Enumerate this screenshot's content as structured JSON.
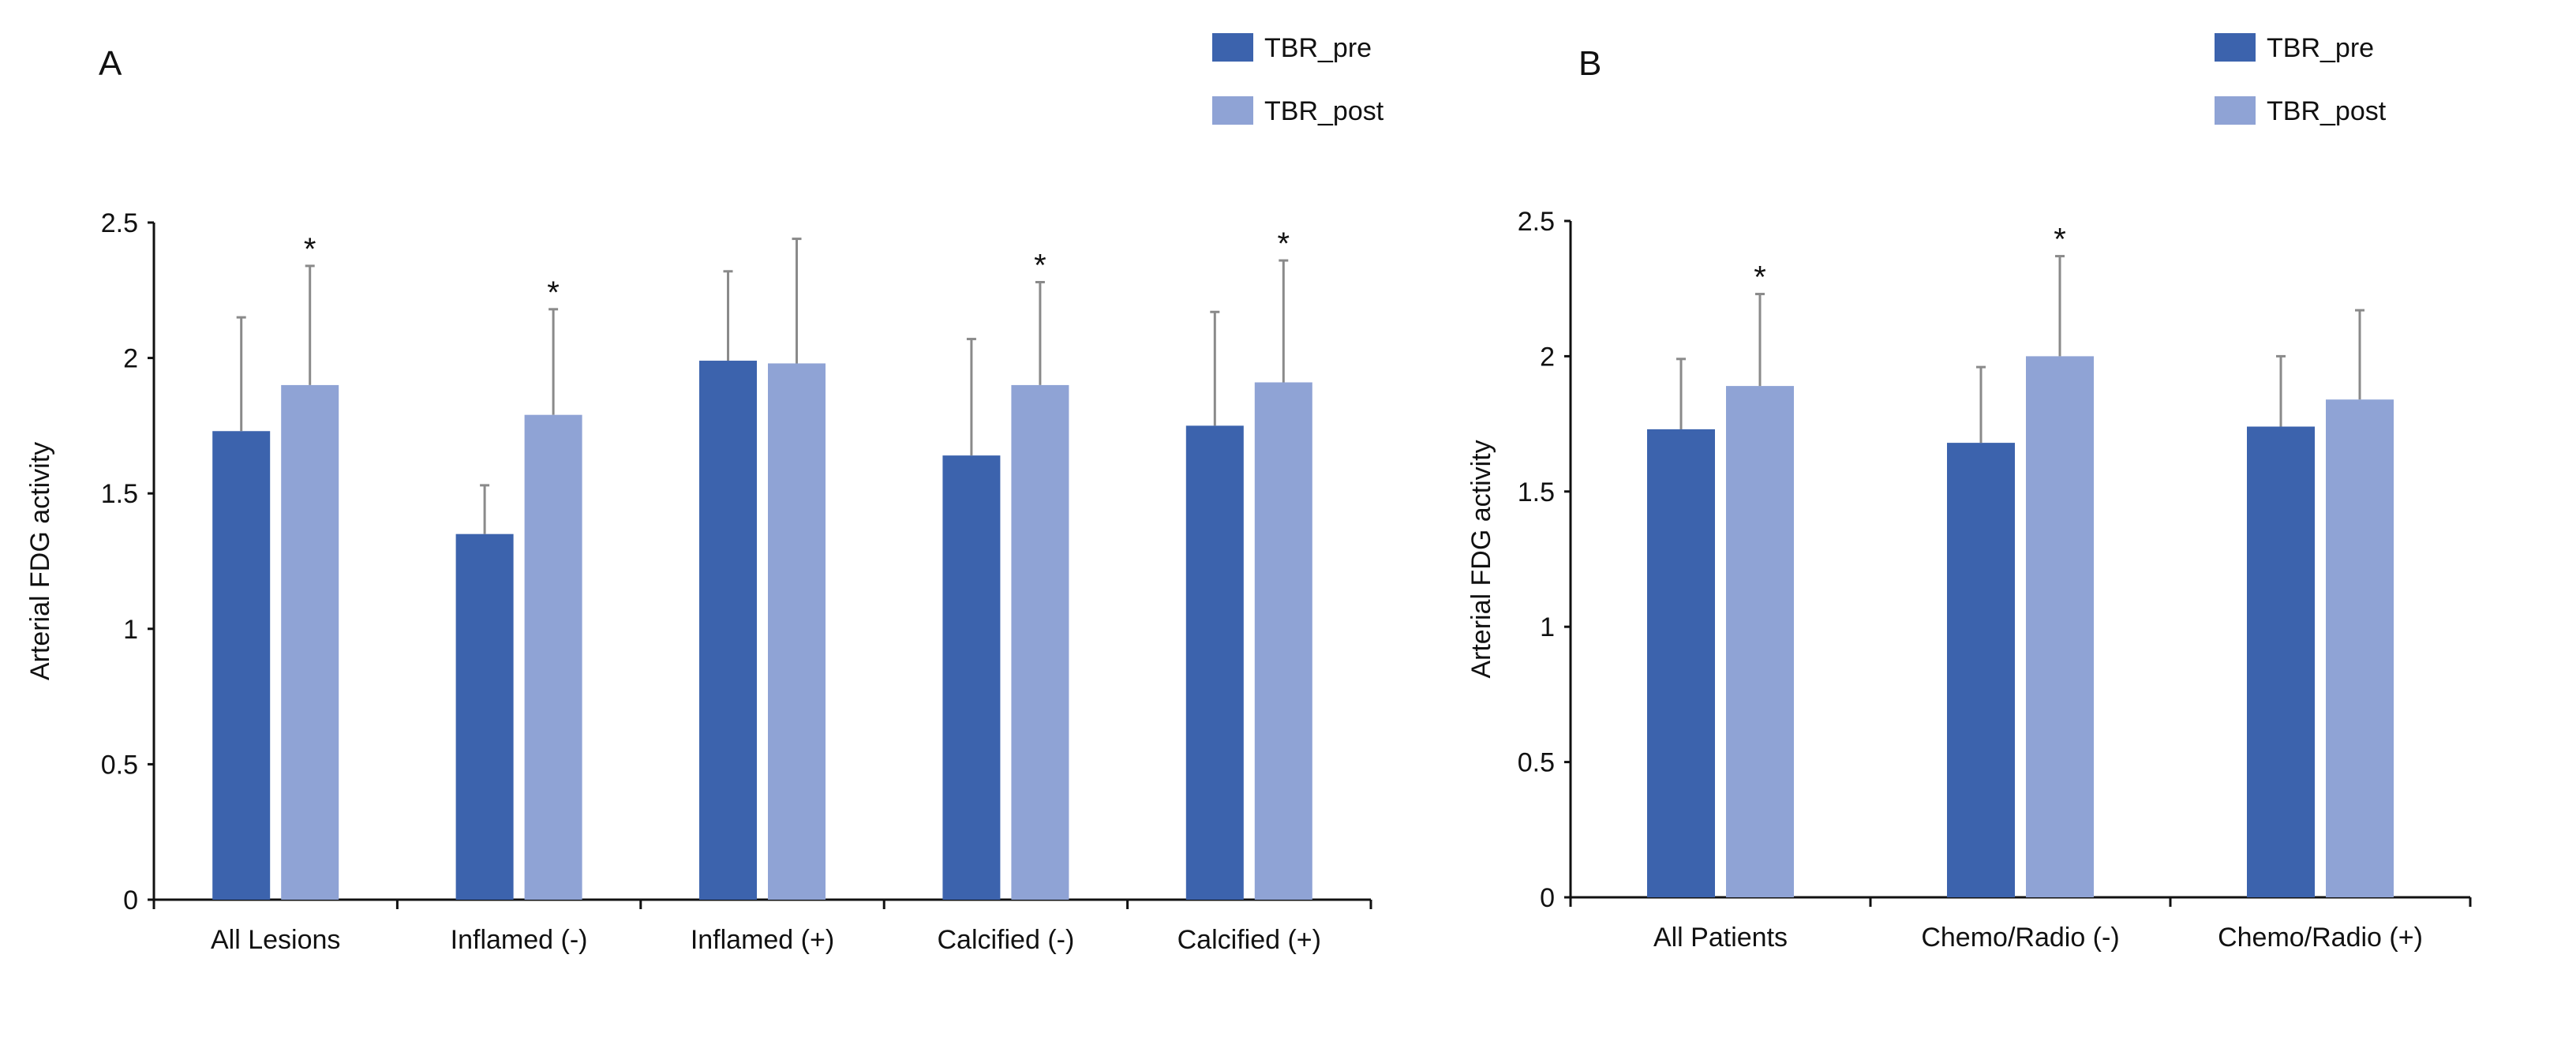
{
  "chart_data": [
    {
      "type": "bar",
      "panel_label": "A",
      "title": "",
      "xlabel": "",
      "ylabel": "Arterial FDG activity",
      "ylim": [
        0,
        2.5
      ],
      "yticks": [
        "0",
        "0.5",
        "1",
        "1.5",
        "2",
        "2.5"
      ],
      "categories": [
        "All Lesions",
        "Inflamed (-)",
        "Inflamed (+)",
        "Calcified (-)",
        "Calcified (+)"
      ],
      "legend_placement": "top-right",
      "series": [
        {
          "name": "TBR_pre",
          "color": "#3C63AD",
          "values": [
            1.73,
            1.35,
            1.99,
            1.64,
            1.75
          ],
          "error_top": [
            2.15,
            1.53,
            2.32,
            2.07,
            2.17
          ],
          "significant": [
            false,
            false,
            false,
            false,
            false
          ]
        },
        {
          "name": "TBR_post",
          "color": "#8FA3D5",
          "values": [
            1.9,
            1.79,
            1.98,
            1.9,
            1.91
          ],
          "error_top": [
            2.34,
            2.18,
            2.44,
            2.28,
            2.36
          ],
          "significant": [
            true,
            true,
            false,
            true,
            true
          ]
        }
      ],
      "significance_marker": "*"
    },
    {
      "type": "bar",
      "panel_label": "B",
      "title": "",
      "xlabel": "",
      "ylabel": "Arterial FDG activity",
      "ylim": [
        0,
        2.5
      ],
      "yticks": [
        "0",
        "0.5",
        "1",
        "1.5",
        "2",
        "2.5"
      ],
      "categories": [
        "All Patients",
        "Chemo/Radio (-)",
        "Chemo/Radio (+)"
      ],
      "legend_placement": "top-right",
      "series": [
        {
          "name": "TBR_pre",
          "color": "#3C63AD",
          "values": [
            1.73,
            1.68,
            1.74
          ],
          "error_top": [
            1.99,
            1.96,
            2.0
          ],
          "significant": [
            false,
            false,
            false
          ]
        },
        {
          "name": "TBR_post",
          "color": "#8FA3D5",
          "values": [
            1.89,
            2.0,
            1.84
          ],
          "error_top": [
            2.23,
            2.37,
            2.17
          ],
          "significant": [
            true,
            true,
            false
          ]
        }
      ],
      "significance_marker": "*"
    }
  ]
}
